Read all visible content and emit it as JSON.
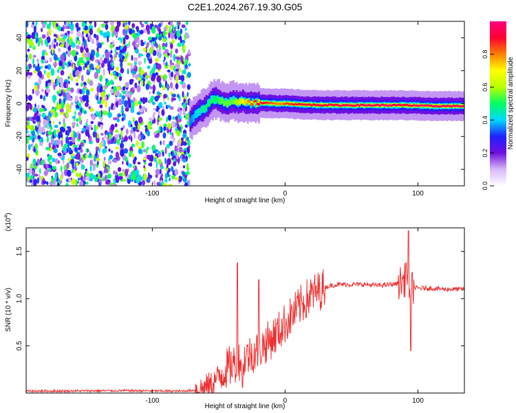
{
  "title": "C2E1.2024.267.19.30.G05",
  "chart_data": [
    {
      "type": "heatmap",
      "xlabel": "Height of straight line (km)",
      "ylabel": "Frequency (Hz)",
      "xlim": [
        -195,
        135
      ],
      "ylim": [
        -50,
        50
      ],
      "xticks": [
        -100,
        0,
        100
      ],
      "xtick_labels": [
        "-100",
        "0",
        "100"
      ],
      "yticks": [
        -40,
        -20,
        0,
        20,
        40
      ],
      "ytick_labels": [
        "-40",
        "-20",
        "0",
        "20",
        "40"
      ],
      "colorbar": {
        "label": "Normalized spectral amplitude",
        "range": [
          0,
          1
        ],
        "ticks": [
          0.0,
          0.2,
          0.4,
          0.6,
          0.8
        ],
        "tick_labels": [
          "0.0",
          "0.2",
          "0.4",
          "0.6",
          "0.8"
        ],
        "colormap": [
          "#ffffff",
          "#d8b8f8",
          "#7010e0",
          "#2020ff",
          "#00d8ff",
          "#00ff60",
          "#b8ff00",
          "#ffff00",
          "#ff8000",
          "#ff0030",
          "#ff0080"
        ]
      },
      "noise_region_x": [
        -195,
        -72
      ],
      "ridge": {
        "x": [
          -72,
          -68,
          -64,
          -60,
          -56,
          -52,
          -48,
          -44,
          -40,
          -36,
          -32,
          -28,
          -24,
          -20,
          -16,
          -12,
          -8,
          -4,
          0,
          10,
          20,
          40,
          60,
          80,
          90,
          100,
          110,
          120,
          135
        ],
        "freq": [
          -10,
          -7,
          -4,
          -2,
          2,
          3,
          1,
          0,
          2,
          1,
          1,
          0.5,
          0.5,
          0.5,
          0.3,
          0.3,
          0,
          0,
          0,
          -0.5,
          -0.8,
          -1,
          -1,
          -1,
          -1,
          -1.2,
          -1.5,
          -1.5,
          -1.5
        ],
        "peak_amplitude": [
          0.35,
          0.4,
          0.45,
          0.5,
          0.5,
          0.5,
          0.55,
          0.55,
          0.55,
          0.6,
          0.7,
          0.8,
          0.85,
          0.9,
          0.9,
          0.85,
          0.8,
          0.8,
          0.85,
          0.9,
          0.9,
          0.92,
          0.95,
          0.95,
          0.9,
          0.95,
          0.95,
          0.95,
          0.95
        ]
      }
    },
    {
      "type": "line",
      "xlabel": "Height of straight line (km)",
      "ylabel": "SNR (10 * v/v)",
      "y_multiplier_label": "(x10",
      "y_multiplier_exp": "4",
      "y_multiplier_close": ")",
      "xlim": [
        -195,
        135
      ],
      "ylim": [
        0,
        17500
      ],
      "xticks": [
        -100,
        0,
        100
      ],
      "xtick_labels": [
        "-100",
        "0",
        "100"
      ],
      "yticks": [
        5000,
        10000,
        15000
      ],
      "ytick_labels": [
        "0.5",
        "1.0",
        "1.5"
      ],
      "series": [
        {
          "color": "#ee3030",
          "x": [
            -195,
            -120,
            -80,
            -68,
            -60,
            -55,
            -50,
            -45,
            -40,
            -35,
            -30,
            -25,
            -20,
            -15,
            -10,
            -5,
            0,
            5,
            10,
            15,
            20,
            25,
            30,
            35,
            40,
            50,
            60,
            70,
            80,
            85,
            88,
            90,
            92,
            94,
            96,
            100,
            110,
            120,
            135
          ],
          "y": [
            200,
            250,
            200,
            300,
            600,
            1000,
            1800,
            2500,
            3000,
            3400,
            3800,
            4200,
            4600,
            5200,
            5800,
            6500,
            7400,
            8200,
            9000,
            9800,
            10400,
            10800,
            11200,
            11400,
            11500,
            11500,
            11500,
            11400,
            11500,
            11600,
            11800,
            12000,
            11600,
            11400,
            11200,
            11100,
            11100,
            11000,
            11000
          ],
          "spikes": [
            {
              "x": -36,
              "y": 13800
            },
            {
              "x": -32,
              "y": 600
            },
            {
              "x": -20,
              "y": 12000
            },
            {
              "x": 93,
              "y": 17200
            },
            {
              "x": 94.5,
              "y": 4500
            },
            {
              "x": 91,
              "y": 13800
            }
          ]
        }
      ]
    }
  ]
}
